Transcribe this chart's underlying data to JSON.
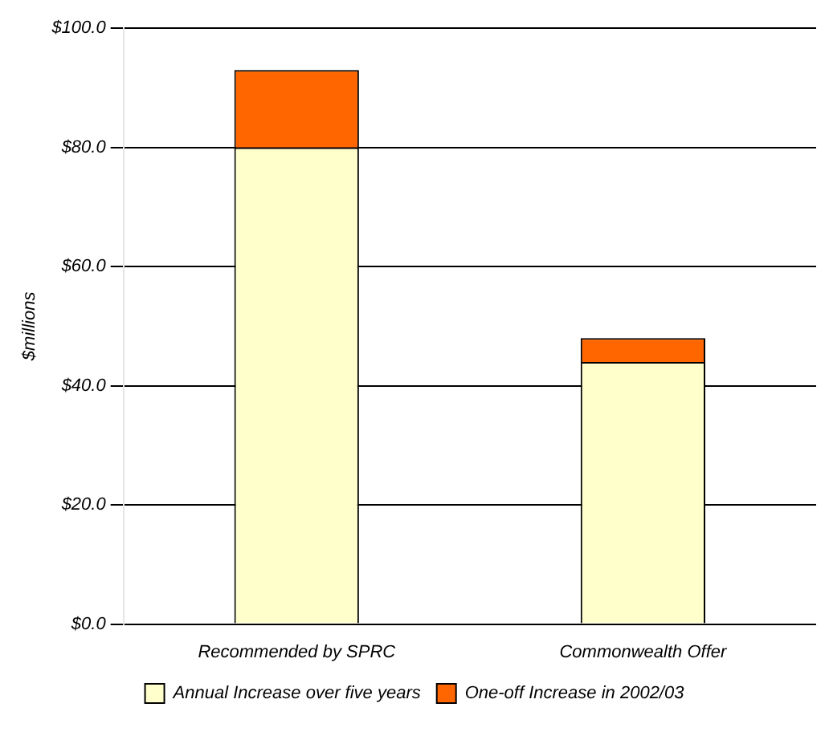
{
  "chart_data": {
    "type": "bar",
    "stacked": true,
    "ylabel": "$millions",
    "categories": [
      "Recommended by SPRC",
      "Commonwealth Offer"
    ],
    "series": [
      {
        "name": "Annual Increase over five years",
        "color": "#ffffcc",
        "values": [
          80,
          44
        ]
      },
      {
        "name": "One-off Increase in 2002/03",
        "color": "#ff6600",
        "values": [
          13,
          4
        ]
      }
    ],
    "ylim": [
      0,
      100
    ],
    "yticks": [
      {
        "value": 0,
        "label": "$0.0"
      },
      {
        "value": 20,
        "label": "$20.0"
      },
      {
        "value": 40,
        "label": "$40.0"
      },
      {
        "value": 60,
        "label": "$60.0"
      },
      {
        "value": 80,
        "label": "$80.0"
      },
      {
        "value": 100,
        "label": "$100.0"
      }
    ],
    "grid": "y",
    "legend": "bottom"
  }
}
